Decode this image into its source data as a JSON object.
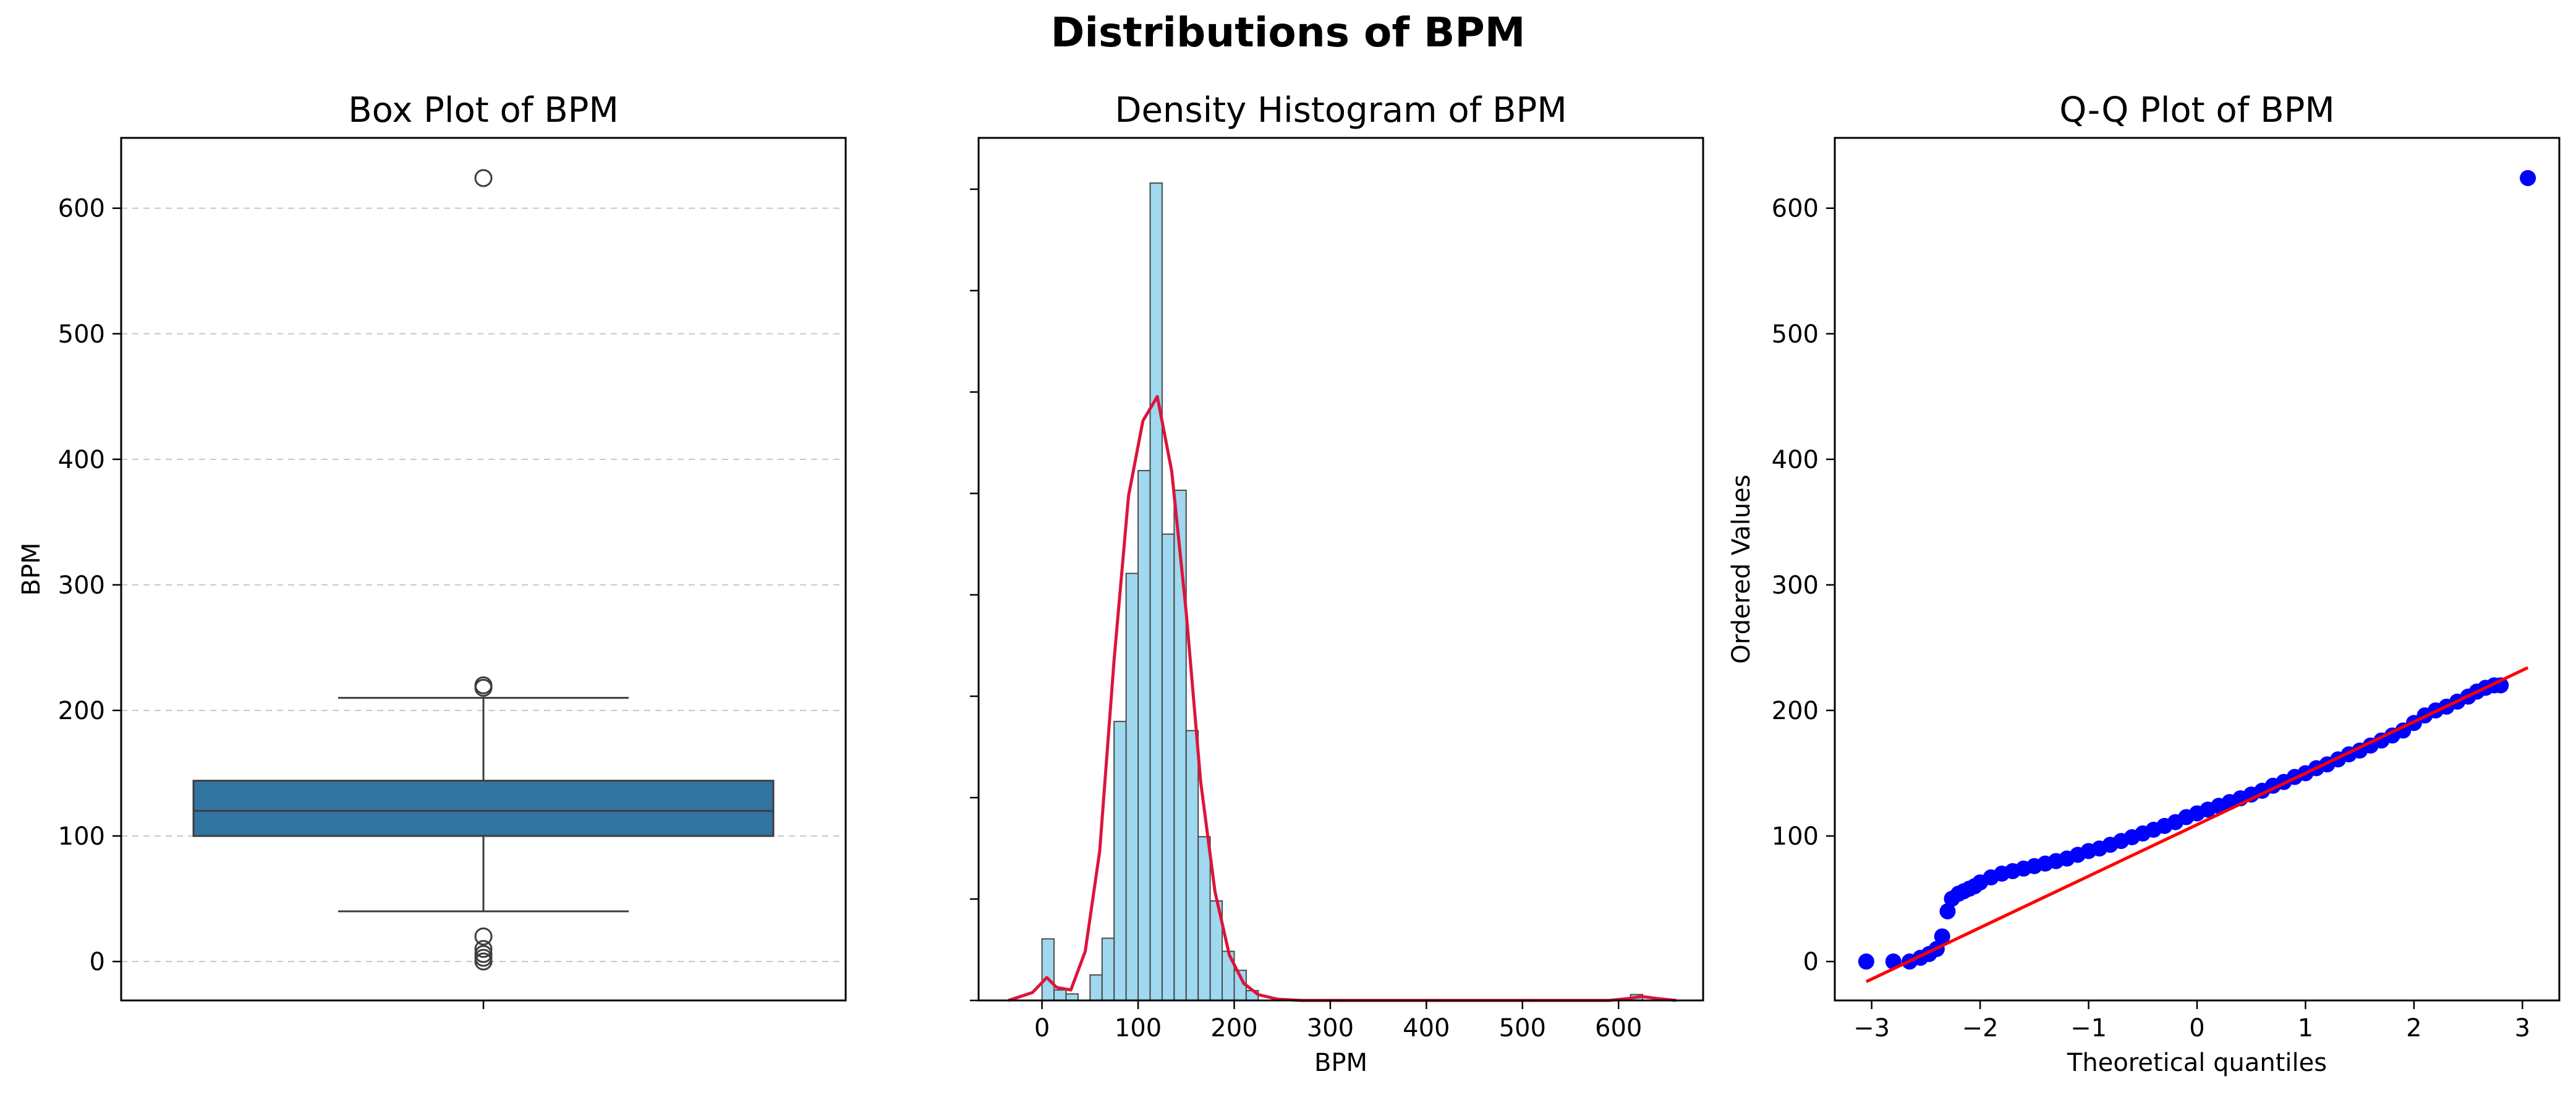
{
  "title": "Distributions of BPM",
  "chart_data": [
    {
      "type": "box",
      "title": "Box Plot of BPM",
      "xlabel": "",
      "ylabel": "BPM",
      "ylim": [
        -31,
        656
      ],
      "yticks": [
        0,
        100,
        200,
        300,
        400,
        500,
        600
      ],
      "grid": "horizontal dashed",
      "box_color": "#3274a1",
      "stats": {
        "min_whisker": 40,
        "q1": 100,
        "median": 120,
        "q3": 144,
        "max_whisker": 210
      },
      "outliers": [
        0,
        3,
        6,
        10,
        20,
        218,
        220,
        624
      ]
    },
    {
      "type": "histogram",
      "title": "Density Histogram of BPM",
      "xlabel": "BPM",
      "ylabel": "",
      "xlim": [
        -66,
        688
      ],
      "xticks": [
        0,
        100,
        200,
        300,
        400,
        500,
        600
      ],
      "bar_color": "#87ceeb",
      "kde_color": "#dc143c",
      "bin_width": 12.5,
      "bins": [
        {
          "x": 0,
          "density": 0.00094
        },
        {
          "x": 12.5,
          "density": 0.00016
        },
        {
          "x": 25,
          "density": 0.0001
        },
        {
          "x": 37.5,
          "density": 0.0
        },
        {
          "x": 50,
          "density": 0.00039
        },
        {
          "x": 62.5,
          "density": 0.00095
        },
        {
          "x": 75,
          "density": 0.00426
        },
        {
          "x": 87.5,
          "density": 0.00652
        },
        {
          "x": 100,
          "density": 0.00809
        },
        {
          "x": 112.5,
          "density": 0.01248
        },
        {
          "x": 125,
          "density": 0.00712
        },
        {
          "x": 137.5,
          "density": 0.00779
        },
        {
          "x": 150,
          "density": 0.00412
        },
        {
          "x": 162.5,
          "density": 0.0025
        },
        {
          "x": 175,
          "density": 0.00152
        },
        {
          "x": 187.5,
          "density": 0.00075
        },
        {
          "x": 200,
          "density": 0.00046
        },
        {
          "x": 212.5,
          "density": 0.00015
        },
        {
          "x": 612.5,
          "density": 9e-05
        }
      ],
      "kde": [
        {
          "x": -35,
          "y": 0.0
        },
        {
          "x": -10,
          "y": 0.00012
        },
        {
          "x": 5,
          "y": 0.00035
        },
        {
          "x": 15,
          "y": 0.0002
        },
        {
          "x": 30,
          "y": 0.00016
        },
        {
          "x": 45,
          "y": 0.00075
        },
        {
          "x": 60,
          "y": 0.00228
        },
        {
          "x": 75,
          "y": 0.0052
        },
        {
          "x": 90,
          "y": 0.0077
        },
        {
          "x": 105,
          "y": 0.00885
        },
        {
          "x": 120,
          "y": 0.00922
        },
        {
          "x": 135,
          "y": 0.00808
        },
        {
          "x": 150,
          "y": 0.00594
        },
        {
          "x": 165,
          "y": 0.00335
        },
        {
          "x": 180,
          "y": 0.00166
        },
        {
          "x": 195,
          "y": 0.00069
        },
        {
          "x": 210,
          "y": 0.00026
        },
        {
          "x": 225,
          "y": 9e-05
        },
        {
          "x": 245,
          "y": 2e-05
        },
        {
          "x": 270,
          "y": 0.0
        },
        {
          "x": 590,
          "y": 0.0
        },
        {
          "x": 610,
          "y": 3e-05
        },
        {
          "x": 624,
          "y": 6e-05
        },
        {
          "x": 640,
          "y": 3e-05
        },
        {
          "x": 660,
          "y": 0.0
        }
      ]
    },
    {
      "type": "scatter",
      "title": "Q-Q Plot of BPM",
      "xlabel": "Theoretical quantiles",
      "ylabel": "Ordered Values",
      "xlim": [
        -3.34,
        3.34
      ],
      "ylim": [
        -31,
        656
      ],
      "xticks": [
        -3,
        -2,
        -1,
        0,
        1,
        2,
        3
      ],
      "yticks": [
        0,
        100,
        200,
        300,
        400,
        500,
        600
      ],
      "point_color": "#0000ff",
      "line_color": "#ff0000",
      "fit_line": {
        "slope": 41,
        "intercept": 109
      },
      "points": [
        [
          -3.05,
          0
        ],
        [
          -2.8,
          0
        ],
        [
          -2.65,
          0
        ],
        [
          -2.55,
          3
        ],
        [
          -2.47,
          6
        ],
        [
          -2.4,
          10
        ],
        [
          -2.35,
          20
        ],
        [
          -2.3,
          40
        ],
        [
          -2.26,
          50
        ],
        [
          -2.2,
          54
        ],
        [
          -2.15,
          56
        ],
        [
          -2.1,
          58
        ],
        [
          -2.05,
          60
        ],
        [
          -2.0,
          63
        ],
        [
          -1.9,
          67
        ],
        [
          -1.8,
          70
        ],
        [
          -1.7,
          72
        ],
        [
          -1.6,
          74
        ],
        [
          -1.5,
          76
        ],
        [
          -1.4,
          78
        ],
        [
          -1.3,
          80
        ],
        [
          -1.2,
          82
        ],
        [
          -1.1,
          85
        ],
        [
          -1.0,
          88
        ],
        [
          -0.9,
          90
        ],
        [
          -0.8,
          93
        ],
        [
          -0.7,
          96
        ],
        [
          -0.6,
          99
        ],
        [
          -0.5,
          102
        ],
        [
          -0.4,
          105
        ],
        [
          -0.3,
          108
        ],
        [
          -0.2,
          111
        ],
        [
          -0.1,
          115
        ],
        [
          0.0,
          118
        ],
        [
          0.1,
          121
        ],
        [
          0.2,
          124
        ],
        [
          0.3,
          127
        ],
        [
          0.4,
          130
        ],
        [
          0.5,
          133
        ],
        [
          0.6,
          136
        ],
        [
          0.7,
          140
        ],
        [
          0.8,
          143
        ],
        [
          0.9,
          147
        ],
        [
          1.0,
          150
        ],
        [
          1.1,
          154
        ],
        [
          1.2,
          157
        ],
        [
          1.3,
          161
        ],
        [
          1.4,
          165
        ],
        [
          1.5,
          168
        ],
        [
          1.6,
          172
        ],
        [
          1.7,
          176
        ],
        [
          1.8,
          180
        ],
        [
          1.9,
          184
        ],
        [
          2.0,
          190
        ],
        [
          2.1,
          196
        ],
        [
          2.2,
          200
        ],
        [
          2.3,
          203
        ],
        [
          2.4,
          207
        ],
        [
          2.5,
          211
        ],
        [
          2.58,
          215
        ],
        [
          2.66,
          218
        ],
        [
          2.74,
          220
        ],
        [
          2.8,
          220
        ],
        [
          3.05,
          624
        ]
      ]
    }
  ]
}
